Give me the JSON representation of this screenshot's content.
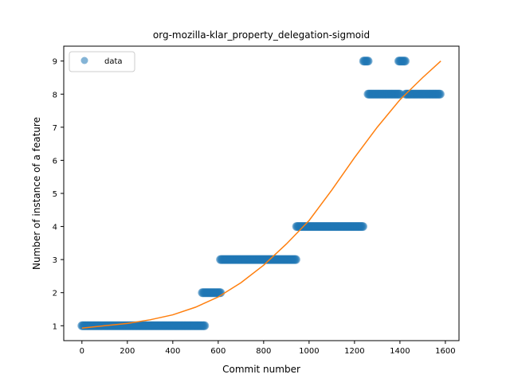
{
  "chart_data": {
    "type": "scatter",
    "title": "org-mozilla-klar_property_delegation-sigmoid",
    "xlabel": "Commit number",
    "ylabel": "Number of instance of a feature",
    "xlim": [
      -80,
      1660
    ],
    "ylim": [
      0.55,
      9.45
    ],
    "xticks": [
      0,
      200,
      400,
      600,
      800,
      1000,
      1200,
      1400,
      1600
    ],
    "yticks": [
      1,
      2,
      3,
      4,
      5,
      6,
      7,
      8,
      9
    ],
    "grid": false,
    "legend": {
      "position": "top-left",
      "entries": [
        "data"
      ]
    },
    "colors": {
      "data": "#1f77b4",
      "fit": "#ff7f0e"
    },
    "series": [
      {
        "name": "data",
        "kind": "scatter",
        "segments": [
          {
            "x_start": 0,
            "x_end": 540,
            "y": 1
          },
          {
            "x_start": 530,
            "x_end": 610,
            "y": 2
          },
          {
            "x_start": 610,
            "x_end": 945,
            "y": 3
          },
          {
            "x_start": 945,
            "x_end": 1240,
            "y": 4
          },
          {
            "x_start": 1240,
            "x_end": 1260,
            "y": 9
          },
          {
            "x_start": 1260,
            "x_end": 1400,
            "y": 8
          },
          {
            "x_start": 1395,
            "x_end": 1425,
            "y": 9
          },
          {
            "x_start": 1425,
            "x_end": 1580,
            "y": 8
          }
        ]
      },
      {
        "kind": "line",
        "x": [
          0,
          100,
          200,
          300,
          400,
          500,
          600,
          700,
          800,
          900,
          1000,
          1100,
          1200,
          1300,
          1400,
          1500,
          1580
        ],
        "y": [
          0.93,
          1.0,
          1.07,
          1.18,
          1.33,
          1.56,
          1.87,
          2.3,
          2.83,
          3.47,
          4.18,
          5.1,
          6.08,
          7.0,
          7.83,
          8.5,
          9.0
        ]
      }
    ]
  }
}
